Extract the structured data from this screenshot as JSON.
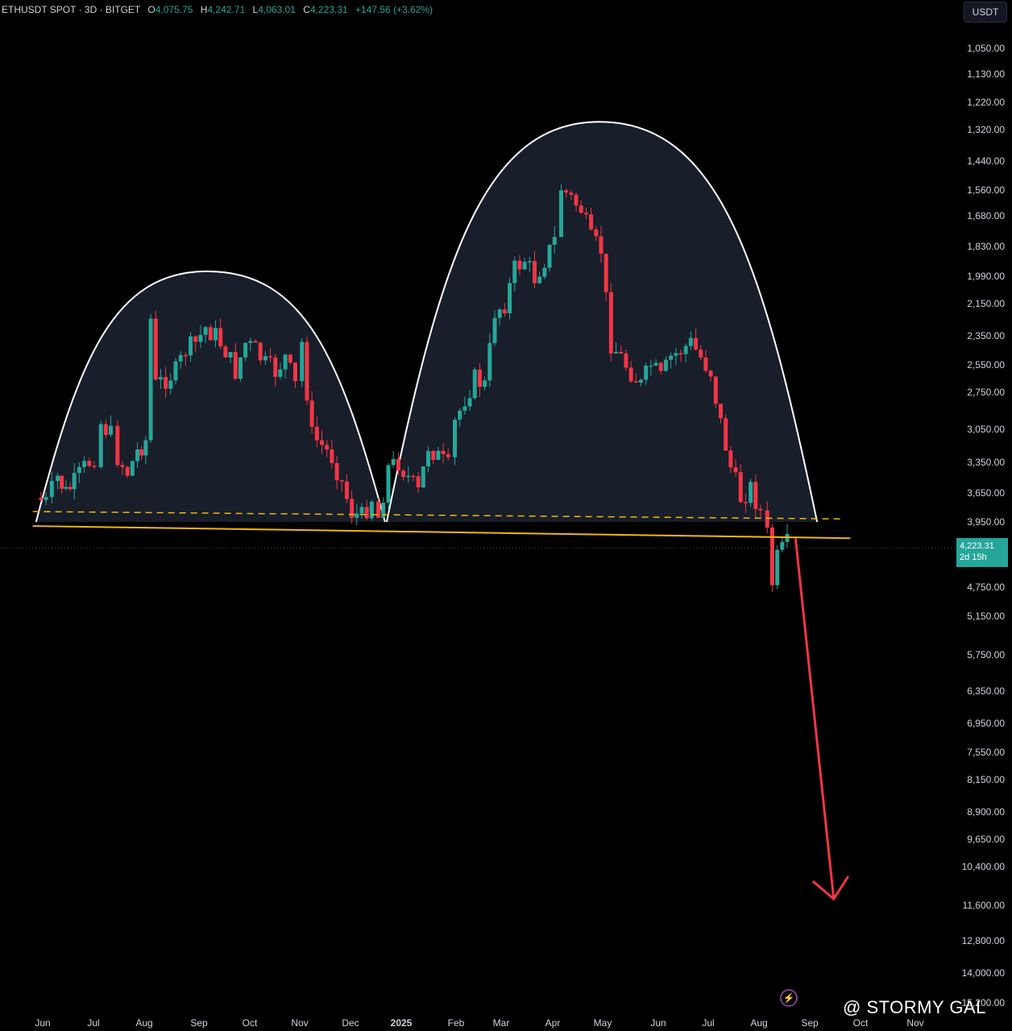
{
  "header": {
    "symbol": "ETHUSDT SPOT · 3D · BITGET",
    "open_label": "O",
    "open": "4,075.75",
    "high_label": "H",
    "high": "4,242.71",
    "low_label": "L",
    "low": "4,063.01",
    "close_label": "C",
    "close": "4,223.31",
    "change": "+147.56 (+3.62%)"
  },
  "currency": "USDT",
  "last_price": {
    "value": "4,223.31",
    "countdown": "2d 15h"
  },
  "watermark": "@ STORMY GAL",
  "colors": {
    "up": "#26a69a",
    "down": "#f23645",
    "neckline": "#f0b90b",
    "arrow": "#f23645",
    "dome_fill": "#1c2331",
    "dome_stroke": "#ffffff"
  },
  "chart_data": {
    "type": "candlestick",
    "note_axis": "inverted",
    "y_ticks": [
      "1,050.00",
      "1,130.00",
      "1,220.00",
      "1,320.00",
      "1,440.00",
      "1,560.00",
      "1,680.00",
      "1,830.00",
      "1,990.00",
      "2,150.00",
      "2,350.00",
      "2,550.00",
      "2,750.00",
      "3,050.00",
      "3,350.00",
      "3,650.00",
      "3,950.00",
      "4,750.00",
      "5,150.00",
      "5,750.00",
      "6,350.00",
      "6,950.00",
      "7,550.00",
      "8,150.00",
      "8,900.00",
      "9,650.00",
      "10,400.00",
      "11,600.00",
      "12,800.00",
      "14,000.00",
      "15,200.00"
    ],
    "x_ticks": [
      "Jun",
      "Jul",
      "Aug",
      "Sep",
      "Oct",
      "Nov",
      "Dec",
      "2025",
      "Feb",
      "Mar",
      "Apr",
      "May",
      "Jun",
      "Jul",
      "Aug",
      "Sep",
      "Oct",
      "Nov"
    ],
    "price_path": [
      [
        "2024-05-28",
        3700
      ],
      [
        "2024-06-03",
        3750
      ],
      [
        "2024-06-10",
        3500
      ],
      [
        "2024-06-15",
        3650
      ],
      [
        "2024-06-20",
        3550
      ],
      [
        "2024-06-26",
        3400
      ],
      [
        "2024-07-02",
        3300
      ],
      [
        "2024-07-06",
        3000
      ],
      [
        "2024-07-12",
        3100
      ],
      [
        "2024-07-16",
        3300
      ],
      [
        "2024-07-22",
        3450
      ],
      [
        "2024-07-28",
        3250
      ],
      [
        "2024-08-02",
        3150
      ],
      [
        "2024-08-05",
        2250
      ],
      [
        "2024-08-08",
        2700
      ],
      [
        "2024-08-14",
        2650
      ],
      [
        "2024-08-20",
        2600
      ],
      [
        "2024-08-26",
        2450
      ],
      [
        "2024-09-01",
        2400
      ],
      [
        "2024-09-07",
        2300
      ],
      [
        "2024-09-13",
        2350
      ],
      [
        "2024-09-19",
        2450
      ],
      [
        "2024-09-25",
        2600
      ],
      [
        "2024-10-01",
        2400
      ],
      [
        "2024-10-07",
        2450
      ],
      [
        "2024-10-13",
        2550
      ],
      [
        "2024-10-19",
        2600
      ],
      [
        "2024-10-25",
        2500
      ],
      [
        "2024-10-31",
        2700
      ],
      [
        "2024-11-04",
        2400
      ],
      [
        "2024-11-10",
        3100
      ],
      [
        "2024-11-16",
        3200
      ],
      [
        "2024-11-22",
        3300
      ],
      [
        "2024-11-28",
        3550
      ],
      [
        "2024-12-04",
        3850
      ],
      [
        "2024-12-10",
        3900
      ],
      [
        "2024-12-16",
        3700
      ],
      [
        "2024-12-20",
        3900
      ],
      [
        "2024-12-26",
        3400
      ],
      [
        "2025-01-01",
        3350
      ],
      [
        "2025-01-07",
        3500
      ],
      [
        "2025-01-13",
        3650
      ],
      [
        "2025-01-19",
        3200
      ],
      [
        "2025-01-25",
        3300
      ],
      [
        "2025-01-31",
        3400
      ],
      [
        "2025-02-04",
        3000
      ],
      [
        "2025-02-10",
        2800
      ],
      [
        "2025-02-16",
        2650
      ],
      [
        "2025-02-22",
        2700
      ],
      [
        "2025-02-28",
        2200
      ],
      [
        "2025-03-06",
        2150
      ],
      [
        "2025-03-12",
        1950
      ],
      [
        "2025-03-18",
        1900
      ],
      [
        "2025-03-24",
        2000
      ],
      [
        "2025-03-30",
        1900
      ],
      [
        "2025-04-05",
        1800
      ],
      [
        "2025-04-09",
        1550
      ],
      [
        "2025-04-15",
        1600
      ],
      [
        "2025-04-21",
        1650
      ],
      [
        "2025-04-27",
        1800
      ],
      [
        "2025-05-03",
        1850
      ],
      [
        "2025-05-09",
        2400
      ],
      [
        "2025-05-15",
        2500
      ],
      [
        "2025-05-21",
        2600
      ],
      [
        "2025-05-27",
        2700
      ],
      [
        "2025-06-02",
        2550
      ],
      [
        "2025-06-08",
        2650
      ],
      [
        "2025-06-14",
        2500
      ],
      [
        "2025-06-20",
        2450
      ],
      [
        "2025-06-26",
        2400
      ],
      [
        "2025-07-02",
        2500
      ],
      [
        "2025-07-08",
        2600
      ],
      [
        "2025-07-14",
        3000
      ],
      [
        "2025-07-20",
        3400
      ],
      [
        "2025-07-26",
        3700
      ],
      [
        "2025-08-01",
        3600
      ],
      [
        "2025-08-07",
        3850
      ],
      [
        "2025-08-11",
        4100
      ],
      [
        "2025-08-14",
        4700
      ],
      [
        "2025-08-17",
        4400
      ],
      [
        "2025-08-20",
        4300
      ],
      [
        "2025-08-23",
        4223.31
      ]
    ],
    "domes": [
      {
        "start": "2024-05-28",
        "end": "2024-12-24",
        "peak": "2024-09-08",
        "peak_price": 1990,
        "base_price": 3950
      },
      {
        "start": "2024-12-25",
        "end": "2025-09-10",
        "peak": "2025-05-02",
        "peak_price": 1320,
        "base_price": 3950
      }
    ],
    "neckline": {
      "from": [
        "2024-05-26",
        4000
      ],
      "to": [
        "2025-09-30",
        4150
      ]
    },
    "projection_arrow": {
      "from": [
        "2025-08-28",
        4150
      ],
      "to": [
        "2025-09-20",
        11400
      ]
    }
  }
}
